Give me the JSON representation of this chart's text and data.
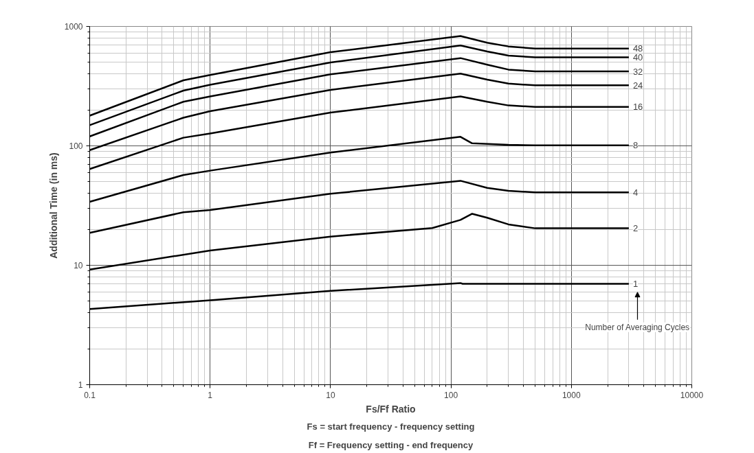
{
  "chart_data": {
    "type": "line",
    "xlabel": "Fs/Ff Ratio",
    "ylabel": "Additional Time (in ms)",
    "log": "xy",
    "grid": true,
    "marker": "none",
    "line_style": "solid",
    "xlim": [
      0.1,
      10000
    ],
    "ylim": [
      1,
      1000
    ],
    "xticks": [
      0.1,
      1,
      10,
      100,
      1000,
      10000
    ],
    "yticks": [
      1,
      10,
      100,
      1000
    ],
    "annotations": [
      "Fs = start frequency - frequency setting",
      "Ff = Frequency setting - end frequency",
      "Number of Averaging Cycles"
    ],
    "series": [
      {
        "name": "48",
        "color": "#000000",
        "x": [
          0.1,
          0.6,
          1,
          10,
          120,
          200,
          300,
          500,
          3000
        ],
        "values": [
          179,
          354,
          392,
          608,
          831,
          731,
          680,
          653,
          653
        ]
      },
      {
        "name": "40",
        "color": "#000000",
        "x": [
          0.1,
          0.6,
          1,
          10,
          120,
          200,
          300,
          500,
          3000
        ],
        "values": [
          149,
          290,
          325,
          499,
          692,
          617,
          570,
          551,
          551
        ]
      },
      {
        "name": "32",
        "color": "#000000",
        "x": [
          0.1,
          0.6,
          1,
          10,
          120,
          200,
          300,
          500,
          3000
        ],
        "values": [
          120,
          234,
          259,
          397,
          543,
          478,
          435,
          420,
          420
        ]
      },
      {
        "name": "24",
        "color": "#000000",
        "x": [
          0.1,
          0.6,
          1,
          10,
          120,
          200,
          300,
          500,
          3000
        ],
        "values": [
          92,
          172,
          195,
          294,
          403,
          359,
          332,
          321,
          321
        ]
      },
      {
        "name": "16",
        "color": "#000000",
        "x": [
          0.1,
          0.6,
          1,
          10,
          120,
          200,
          300,
          500,
          3000
        ],
        "values": [
          64,
          117,
          127,
          190,
          259,
          234,
          218,
          212,
          212
        ]
      },
      {
        "name": "8",
        "color": "#000000",
        "x": [
          0.1,
          0.6,
          1,
          10,
          120,
          150,
          300,
          500,
          3000
        ],
        "values": [
          34,
          57,
          62,
          88,
          119,
          105,
          102,
          101,
          101
        ]
      },
      {
        "name": "4",
        "color": "#000000",
        "x": [
          0.1,
          0.6,
          1,
          10,
          120,
          200,
          300,
          500,
          3000
        ],
        "values": [
          18.7,
          27.8,
          29,
          39.7,
          51,
          44.5,
          42,
          40.8,
          40.8
        ]
      },
      {
        "name": "2",
        "color": "#000000",
        "x": [
          0.1,
          1,
          10,
          70,
          120,
          150,
          200,
          300,
          500,
          3000
        ],
        "values": [
          9.2,
          13.3,
          17.4,
          20.5,
          24,
          27,
          25,
          22,
          20.4,
          20.4
        ]
      },
      {
        "name": "1",
        "color": "#000000",
        "x": [
          0.1,
          1,
          10,
          120,
          125,
          3000
        ],
        "values": [
          4.3,
          5.1,
          6.1,
          7.1,
          7.0,
          7.0
        ]
      }
    ]
  }
}
